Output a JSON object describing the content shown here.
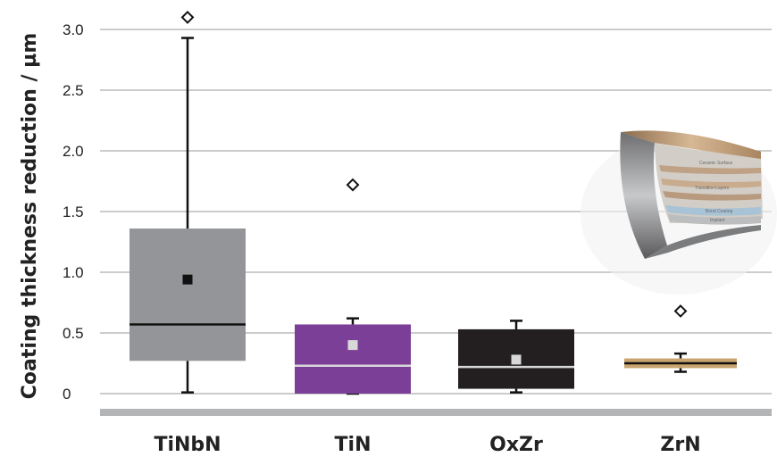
{
  "chart_data": {
    "type": "box",
    "title": "",
    "xlabel": "",
    "ylabel": "Coating thickness reduction / µm",
    "ylim": [
      0,
      3.0
    ],
    "yticks": [
      {
        "value": 0,
        "label": "0"
      },
      {
        "value": 0.5,
        "label": "0.5"
      },
      {
        "value": 1.0,
        "label": "1.0"
      },
      {
        "value": 1.5,
        "label": "1.5"
      },
      {
        "value": 2.0,
        "label": "2.0"
      },
      {
        "value": 2.5,
        "label": "2.5"
      },
      {
        "value": 3.0,
        "label": "3.0"
      }
    ],
    "grid": true,
    "categories": [
      "TiNbN",
      "TiN",
      "OxZr",
      "ZrN"
    ],
    "boxes": [
      {
        "category": "TiNbN",
        "color": "#939598",
        "median_color": "#111111",
        "mean_color": "#111111",
        "whisker_low": 0.01,
        "q1": 0.27,
        "median": 0.57,
        "q3": 1.36,
        "whisker_high": 2.93,
        "mean": 0.94,
        "outlier": 3.1
      },
      {
        "category": "TiN",
        "color": "#7b3f98",
        "median_color": "#d8d8d8",
        "mean_color": "#d8d8d8",
        "whisker_low": 0.0,
        "q1": 0.0,
        "median": 0.23,
        "q3": 0.57,
        "whisker_high": 0.62,
        "mean": 0.4,
        "outlier": 1.72
      },
      {
        "category": "OxZr",
        "color": "#231f20",
        "median_color": "#d8d8d8",
        "mean_color": "#d8d8d8",
        "whisker_low": 0.01,
        "q1": 0.04,
        "median": 0.22,
        "q3": 0.53,
        "whisker_high": 0.6,
        "mean": 0.28,
        "outlier": null
      },
      {
        "category": "ZrN",
        "color": "#c9a46e",
        "median_color": "#111111",
        "mean_color": "#111111",
        "whisker_low": 0.18,
        "q1": 0.21,
        "median": 0.25,
        "q3": 0.29,
        "whisker_high": 0.33,
        "mean": null,
        "outlier": 0.68
      }
    ]
  },
  "inset": {
    "layer_labels": [
      "Ceramic Surface",
      "Transition Layers",
      "Bond Coating",
      "Implant"
    ]
  }
}
